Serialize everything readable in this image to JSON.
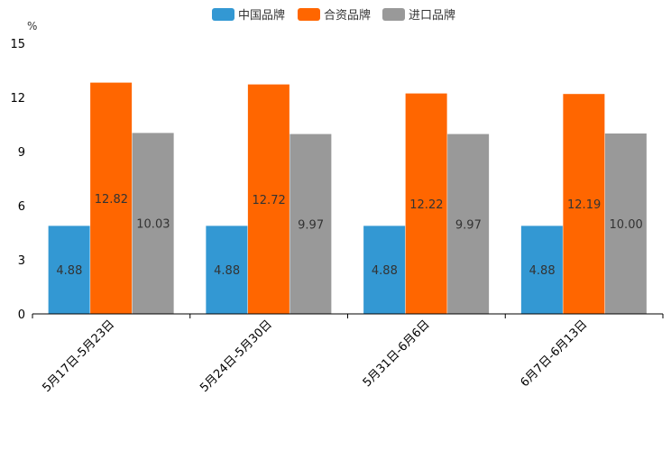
{
  "chart_data": {
    "type": "bar",
    "title": "",
    "xlabel": "",
    "ylabel": "%",
    "ylim": [
      0,
      15
    ],
    "yticks": [
      0,
      3,
      6,
      9,
      12,
      15
    ],
    "grid": false,
    "legend_position": "top-center",
    "categories": [
      "5月17日-5月23日",
      "5月24日-5月30日",
      "5月31日-6月6日",
      "6月7日-6月13日"
    ],
    "series": [
      {
        "name": "中国品牌",
        "color": "#3398d3",
        "values": [
          4.88,
          4.88,
          4.88,
          4.88
        ],
        "labels": [
          "4.88",
          "4.88",
          "4.88",
          "4.88"
        ]
      },
      {
        "name": "合资品牌",
        "color": "#ff6600",
        "values": [
          12.82,
          12.72,
          12.22,
          12.19
        ],
        "labels": [
          "12.82",
          "12.72",
          "12.22",
          "12.19"
        ]
      },
      {
        "name": "进口品牌",
        "color": "#999999",
        "values": [
          10.03,
          9.97,
          9.97,
          10.0
        ],
        "labels": [
          "10.03",
          "9.97",
          "9.97",
          "10.00"
        ]
      }
    ]
  }
}
